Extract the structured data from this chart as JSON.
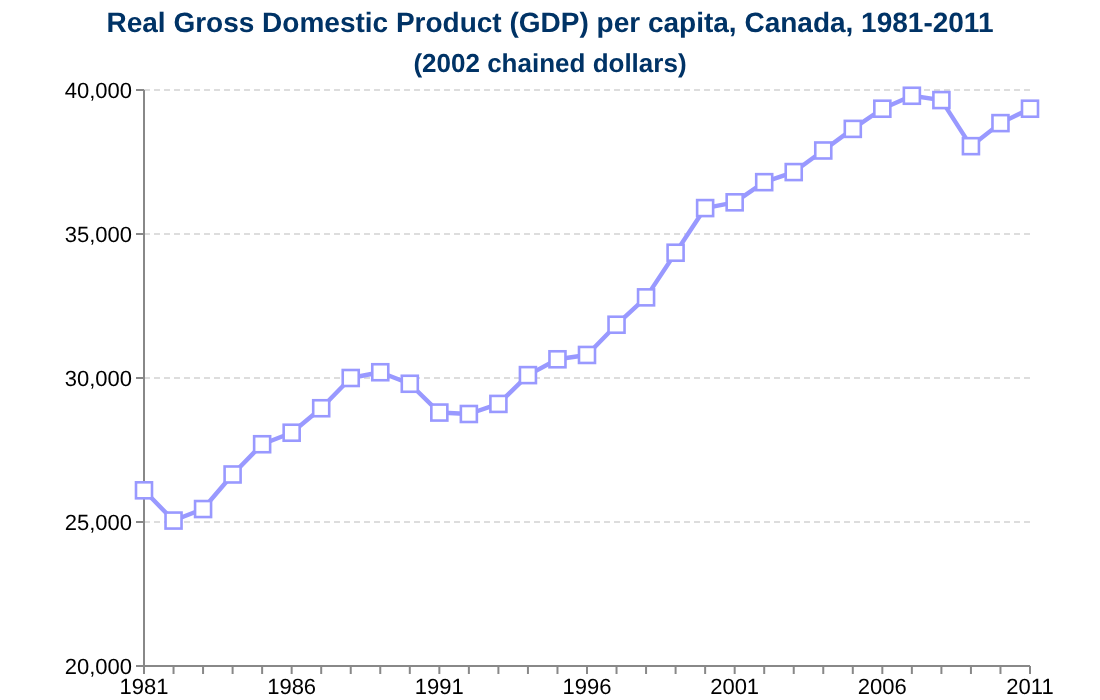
{
  "chart_data": {
    "type": "line",
    "title": "Real Gross Domestic Product (GDP) per capita, Canada, 1981-2011",
    "subtitle": "(2002 chained dollars)",
    "x": [
      1981,
      1982,
      1983,
      1984,
      1985,
      1986,
      1987,
      1988,
      1989,
      1990,
      1991,
      1992,
      1993,
      1994,
      1995,
      1996,
      1997,
      1998,
      1999,
      2000,
      2001,
      2002,
      2003,
      2004,
      2005,
      2006,
      2007,
      2008,
      2009,
      2010,
      2011
    ],
    "series": [
      {
        "color": "#9999ff",
        "values": [
          26100,
          25050,
          25450,
          26650,
          27700,
          28100,
          28950,
          30000,
          30200,
          29800,
          28800,
          28750,
          29100,
          30100,
          30650,
          30800,
          31850,
          32800,
          34350,
          35900,
          36100,
          36800,
          37150,
          37900,
          38650,
          39350,
          39800,
          39650,
          38050,
          38850,
          39350
        ]
      }
    ],
    "xlim": [
      1981,
      2011
    ],
    "xticks": [
      1981,
      {
        "value": 1982,
        "label": null
      },
      {
        "value": 1983,
        "label": null
      },
      {
        "value": 1984,
        "label": null
      },
      {
        "value": 1985,
        "label": null
      },
      1986,
      {
        "value": 1987,
        "label": null
      },
      {
        "value": 1988,
        "label": null
      },
      {
        "value": 1989,
        "label": null
      },
      {
        "value": 1990,
        "label": null
      },
      1991,
      {
        "value": 1992,
        "label": null
      },
      {
        "value": 1993,
        "label": null
      },
      {
        "value": 1994,
        "label": null
      },
      {
        "value": 1995,
        "label": null
      },
      1996,
      {
        "value": 1997,
        "label": null
      },
      {
        "value": 1998,
        "label": null
      },
      {
        "value": 1999,
        "label": null
      },
      {
        "value": 2000,
        "label": null
      },
      2001,
      {
        "value": 2002,
        "label": null
      },
      {
        "value": 2003,
        "label": null
      },
      {
        "value": 2004,
        "label": null
      },
      {
        "value": 2005,
        "label": null
      },
      2006,
      {
        "value": 2007,
        "label": null
      },
      {
        "value": 2008,
        "label": null
      },
      {
        "value": 2009,
        "label": null
      },
      {
        "value": 2010,
        "label": null
      },
      2011
    ],
    "ylim": [
      20000,
      40000
    ],
    "yticks": [
      {
        "value": 20000,
        "label": "20,000"
      },
      {
        "value": 25000,
        "label": "25,000"
      },
      {
        "value": 30000,
        "label": "30,000"
      },
      {
        "value": 35000,
        "label": "35,000"
      },
      {
        "value": 40000,
        "label": "40,000"
      }
    ],
    "grid": "y",
    "marker": "square",
    "line_style": "solid"
  }
}
